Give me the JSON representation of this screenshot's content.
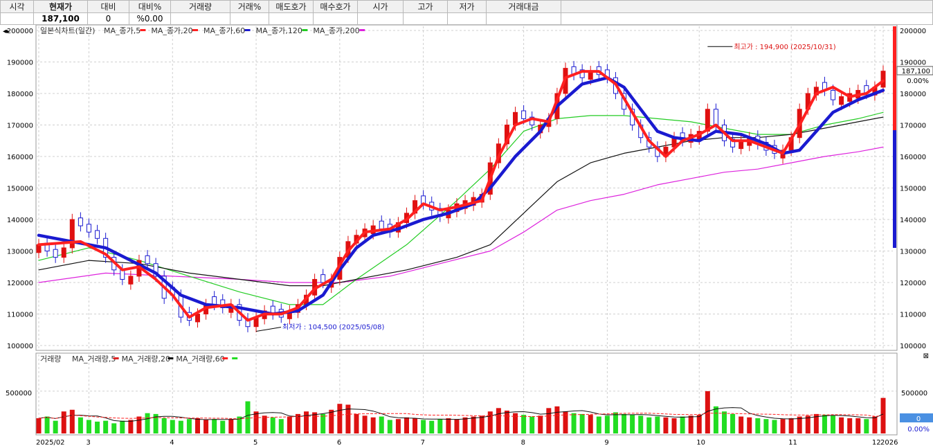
{
  "quote_panel": {
    "headers": [
      "시각",
      "현재가",
      "대비",
      "대비%",
      "거래량",
      "거래%",
      "매도호가",
      "매수호가",
      "시가",
      "고가",
      "저가",
      "거래대금",
      ""
    ],
    "values": [
      "",
      "187,100",
      "0",
      "%0.00",
      "",
      "",
      "",
      "",
      "",
      "",
      "",
      "",
      ""
    ]
  },
  "chart_data": {
    "type": "candlestick",
    "price_panel": {
      "title": "일본식차트(일간)",
      "ylim": [
        100000,
        200000
      ],
      "y_ticks": [
        100000,
        110000,
        120000,
        130000,
        140000,
        150000,
        160000,
        170000,
        180000,
        190000,
        200000
      ],
      "y_tick_labels": [
        "100000",
        "110000",
        "120000",
        "130000",
        "140000",
        "150000",
        "160000",
        "170000",
        "180000",
        "190000",
        "200000"
      ],
      "legend": [
        {
          "name": "MA_종가,5",
          "color": "#ff2020"
        },
        {
          "name": "MA_종가,20",
          "color": "#ff2020"
        },
        {
          "name": "MA_종가,60",
          "color": "#1a1ad0"
        },
        {
          "name": "MA_종가,120",
          "color": "#22cc22"
        },
        {
          "name": "MA_종가,200",
          "color": "#dd22dd"
        }
      ],
      "candles_approx": [
        [
          0,
          132000,
          0
        ],
        [
          1,
          130000,
          1
        ],
        [
          2,
          128000,
          1
        ],
        [
          3,
          131000,
          0
        ],
        [
          4,
          140000,
          0
        ],
        [
          5,
          138000,
          1
        ],
        [
          6,
          136000,
          1
        ],
        [
          7,
          134000,
          1
        ],
        [
          8,
          128000,
          1
        ],
        [
          9,
          124000,
          1
        ],
        [
          10,
          121000,
          1
        ],
        [
          11,
          122000,
          0
        ],
        [
          12,
          127000,
          0
        ],
        [
          13,
          126000,
          1
        ],
        [
          14,
          122000,
          1
        ],
        [
          15,
          115000,
          1
        ],
        [
          16,
          116000,
          1
        ],
        [
          17,
          109000,
          1
        ],
        [
          18,
          108000,
          1
        ],
        [
          19,
          110000,
          0
        ],
        [
          20,
          113000,
          0
        ],
        [
          21,
          113000,
          1
        ],
        [
          22,
          112000,
          1
        ],
        [
          23,
          113000,
          0
        ],
        [
          24,
          108000,
          1
        ],
        [
          25,
          106000,
          1
        ],
        [
          26,
          109000,
          0
        ],
        [
          27,
          111000,
          0
        ],
        [
          28,
          110000,
          1
        ],
        [
          29,
          109000,
          1
        ],
        [
          30,
          111000,
          0
        ],
        [
          31,
          113000,
          0
        ],
        [
          32,
          116000,
          0
        ],
        [
          33,
          121000,
          0
        ],
        [
          34,
          120000,
          1
        ],
        [
          35,
          121000,
          0
        ],
        [
          36,
          128000,
          0
        ],
        [
          37,
          133000,
          0
        ],
        [
          38,
          135000,
          0
        ],
        [
          39,
          137000,
          0
        ],
        [
          40,
          138000,
          0
        ],
        [
          41,
          137000,
          1
        ],
        [
          42,
          136000,
          1
        ],
        [
          43,
          139000,
          0
        ],
        [
          44,
          142000,
          0
        ],
        [
          45,
          146000,
          0
        ],
        [
          46,
          145000,
          1
        ],
        [
          47,
          143000,
          1
        ],
        [
          48,
          141000,
          1
        ],
        [
          49,
          143000,
          0
        ],
        [
          50,
          145000,
          0
        ],
        [
          51,
          146000,
          0
        ],
        [
          52,
          147000,
          0
        ],
        [
          53,
          148000,
          0
        ],
        [
          54,
          158000,
          0
        ],
        [
          55,
          164000,
          0
        ],
        [
          56,
          170000,
          0
        ],
        [
          57,
          174000,
          0
        ],
        [
          58,
          172000,
          1
        ],
        [
          59,
          170000,
          1
        ],
        [
          60,
          170000,
          0
        ],
        [
          61,
          172000,
          0
        ],
        [
          62,
          180000,
          0
        ],
        [
          63,
          188000,
          0
        ],
        [
          64,
          186000,
          1
        ],
        [
          65,
          185000,
          1
        ],
        [
          66,
          187000,
          0
        ],
        [
          67,
          186000,
          1
        ],
        [
          68,
          185000,
          1
        ],
        [
          69,
          180000,
          1
        ],
        [
          70,
          175000,
          1
        ],
        [
          71,
          170000,
          1
        ],
        [
          72,
          166000,
          1
        ],
        [
          73,
          163000,
          1
        ],
        [
          74,
          160000,
          1
        ],
        [
          75,
          163000,
          0
        ],
        [
          76,
          166000,
          0
        ],
        [
          77,
          165000,
          1
        ],
        [
          78,
          167000,
          0
        ],
        [
          79,
          168000,
          0
        ],
        [
          80,
          175000,
          0
        ],
        [
          81,
          170000,
          1
        ],
        [
          82,
          165000,
          1
        ],
        [
          83,
          163000,
          1
        ],
        [
          84,
          165000,
          0
        ],
        [
          85,
          166000,
          0
        ],
        [
          86,
          164000,
          1
        ],
        [
          87,
          162000,
          1
        ],
        [
          88,
          161000,
          1
        ],
        [
          89,
          162000,
          0
        ],
        [
          90,
          166000,
          0
        ],
        [
          91,
          175000,
          0
        ],
        [
          92,
          180000,
          0
        ],
        [
          93,
          182000,
          0
        ],
        [
          94,
          181000,
          1
        ],
        [
          95,
          178000,
          1
        ],
        [
          96,
          179000,
          0
        ],
        [
          97,
          180000,
          0
        ],
        [
          98,
          181000,
          0
        ],
        [
          99,
          180000,
          1
        ],
        [
          100,
          182000,
          0
        ],
        [
          101,
          187100,
          0
        ]
      ],
      "ma5": [
        [
          0,
          132000
        ],
        [
          5,
          133000
        ],
        [
          8,
          129000
        ],
        [
          10,
          124000
        ],
        [
          12,
          125000
        ],
        [
          14,
          121000
        ],
        [
          16,
          116000
        ],
        [
          18,
          109000
        ],
        [
          20,
          112000
        ],
        [
          23,
          113000
        ],
        [
          25,
          108000
        ],
        [
          27,
          110000
        ],
        [
          29,
          110000
        ],
        [
          31,
          112000
        ],
        [
          33,
          118000
        ],
        [
          35,
          121000
        ],
        [
          37,
          130000
        ],
        [
          39,
          136000
        ],
        [
          42,
          137000
        ],
        [
          44,
          140000
        ],
        [
          46,
          145000
        ],
        [
          48,
          143000
        ],
        [
          50,
          144000
        ],
        [
          53,
          146000
        ],
        [
          55,
          160000
        ],
        [
          57,
          170000
        ],
        [
          59,
          172000
        ],
        [
          61,
          171000
        ],
        [
          63,
          185000
        ],
        [
          65,
          187000
        ],
        [
          67,
          187000
        ],
        [
          69,
          183000
        ],
        [
          71,
          174000
        ],
        [
          73,
          165000
        ],
        [
          75,
          160000
        ],
        [
          77,
          165000
        ],
        [
          79,
          167000
        ],
        [
          81,
          170000
        ],
        [
          83,
          165000
        ],
        [
          85,
          165000
        ],
        [
          87,
          163000
        ],
        [
          89,
          161000
        ],
        [
          91,
          170000
        ],
        [
          93,
          180000
        ],
        [
          95,
          182000
        ],
        [
          97,
          179000
        ],
        [
          99,
          180000
        ],
        [
          101,
          184000
        ]
      ],
      "ma20": [
        [
          0,
          135000
        ],
        [
          4,
          133000
        ],
        [
          8,
          131000
        ],
        [
          11,
          127000
        ],
        [
          14,
          123000
        ],
        [
          17,
          116000
        ],
        [
          20,
          113000
        ],
        [
          24,
          112000
        ],
        [
          28,
          110000
        ],
        [
          31,
          111000
        ],
        [
          34,
          116000
        ],
        [
          36,
          124000
        ],
        [
          38,
          131000
        ],
        [
          40,
          135000
        ],
        [
          43,
          137000
        ],
        [
          46,
          140000
        ],
        [
          49,
          142000
        ],
        [
          52,
          145000
        ],
        [
          54,
          150000
        ],
        [
          57,
          160000
        ],
        [
          60,
          168000
        ],
        [
          62,
          176000
        ],
        [
          65,
          183000
        ],
        [
          68,
          185000
        ],
        [
          70,
          182000
        ],
        [
          72,
          175000
        ],
        [
          74,
          168000
        ],
        [
          76,
          166000
        ],
        [
          79,
          165000
        ],
        [
          81,
          168000
        ],
        [
          84,
          167000
        ],
        [
          87,
          164000
        ],
        [
          89,
          161000
        ],
        [
          91,
          162000
        ],
        [
          93,
          168000
        ],
        [
          95,
          174000
        ],
        [
          98,
          178000
        ],
        [
          101,
          181000
        ]
      ],
      "ma60": [
        [
          0,
          124000
        ],
        [
          6,
          127000
        ],
        [
          12,
          126000
        ],
        [
          18,
          123000
        ],
        [
          24,
          121000
        ],
        [
          30,
          119000
        ],
        [
          34,
          119000
        ],
        [
          38,
          121000
        ],
        [
          44,
          124000
        ],
        [
          50,
          128000
        ],
        [
          54,
          132000
        ],
        [
          58,
          142000
        ],
        [
          62,
          152000
        ],
        [
          66,
          158000
        ],
        [
          70,
          161000
        ],
        [
          74,
          163000
        ],
        [
          78,
          165000
        ],
        [
          82,
          166000
        ],
        [
          86,
          166000
        ],
        [
          90,
          167000
        ],
        [
          94,
          169000
        ],
        [
          98,
          171000
        ],
        [
          101,
          172500
        ]
      ],
      "ma120": [
        [
          0,
          127000
        ],
        [
          6,
          131000
        ],
        [
          12,
          127000
        ],
        [
          18,
          122000
        ],
        [
          24,
          117000
        ],
        [
          30,
          113000
        ],
        [
          34,
          113000
        ],
        [
          38,
          121000
        ],
        [
          44,
          132000
        ],
        [
          50,
          146000
        ],
        [
          54,
          156000
        ],
        [
          58,
          168000
        ],
        [
          62,
          172000
        ],
        [
          66,
          173000
        ],
        [
          70,
          173000
        ],
        [
          74,
          172000
        ],
        [
          78,
          171000
        ],
        [
          82,
          169000
        ],
        [
          86,
          167000
        ],
        [
          90,
          167000
        ],
        [
          94,
          170000
        ],
        [
          98,
          172000
        ],
        [
          101,
          174000
        ]
      ],
      "ma200": [
        [
          0,
          120000
        ],
        [
          8,
          123000
        ],
        [
          16,
          122000
        ],
        [
          24,
          121000
        ],
        [
          30,
          120000
        ],
        [
          36,
          120000
        ],
        [
          42,
          122000
        ],
        [
          48,
          126000
        ],
        [
          54,
          130000
        ],
        [
          58,
          136000
        ],
        [
          62,
          143000
        ],
        [
          66,
          146000
        ],
        [
          70,
          148000
        ],
        [
          74,
          151000
        ],
        [
          78,
          153000
        ],
        [
          82,
          155000
        ],
        [
          86,
          156000
        ],
        [
          90,
          158000
        ],
        [
          94,
          160000
        ],
        [
          98,
          161500
        ],
        [
          101,
          163000
        ]
      ],
      "annotations": {
        "high_text": "최고가 : 194,900 (2025/10/31)",
        "high_value": 194900,
        "high_bar": 80,
        "low_text": "최저가 : 104,500 (2025/05/08)",
        "low_value": 104500,
        "low_bar": 26,
        "current_price": "187,100",
        "current_pct": "0.00%"
      }
    },
    "volume_panel": {
      "title": "거래량",
      "legend": [
        {
          "name": "MA_거래량,5",
          "color": "#dd2222"
        },
        {
          "name": "MA_거래량,20",
          "color": "#111111"
        },
        {
          "name": "MA_거래량,60",
          "color": "#ff2020"
        },
        {
          "name": "",
          "color": "#22dd22"
        }
      ],
      "y_tick_labels": [
        "500000"
      ],
      "ylim": [
        0,
        900000
      ],
      "volumes_approx": [
        180000,
        200000,
        150000,
        260000,
        280000,
        190000,
        160000,
        140000,
        150000,
        120000,
        150000,
        160000,
        200000,
        240000,
        230000,
        180000,
        160000,
        150000,
        170000,
        180000,
        160000,
        170000,
        150000,
        170000,
        200000,
        380000,
        260000,
        210000,
        190000,
        170000,
        200000,
        230000,
        260000,
        250000,
        230000,
        280000,
        350000,
        340000,
        230000,
        210000,
        190000,
        200000,
        160000,
        170000,
        190000,
        180000,
        160000,
        150000,
        170000,
        180000,
        170000,
        190000,
        200000,
        210000,
        260000,
        300000,
        270000,
        240000,
        220000,
        200000,
        210000,
        300000,
        320000,
        260000,
        240000,
        230000,
        220000,
        200000,
        210000,
        250000,
        230000,
        220000,
        210000,
        190000,
        200000,
        190000,
        180000,
        200000,
        210000,
        220000,
        500000,
        320000,
        260000,
        230000,
        200000,
        190000,
        180000,
        170000,
        160000,
        170000,
        180000,
        200000,
        210000,
        230000,
        220000,
        210000,
        190000,
        180000,
        180000,
        170000,
        200000,
        420000
      ],
      "current_volume": "0",
      "current_pct": "0.00%"
    },
    "x_axis": {
      "labels": [
        "2025/02",
        "3",
        "4",
        "5",
        "6",
        "7",
        "8",
        "9",
        "10",
        "11",
        "12",
        "2026"
      ],
      "label_bars": [
        0,
        6,
        16,
        26,
        36,
        46,
        58,
        68,
        79,
        90,
        100,
        101
      ]
    },
    "n_bars": 102
  }
}
